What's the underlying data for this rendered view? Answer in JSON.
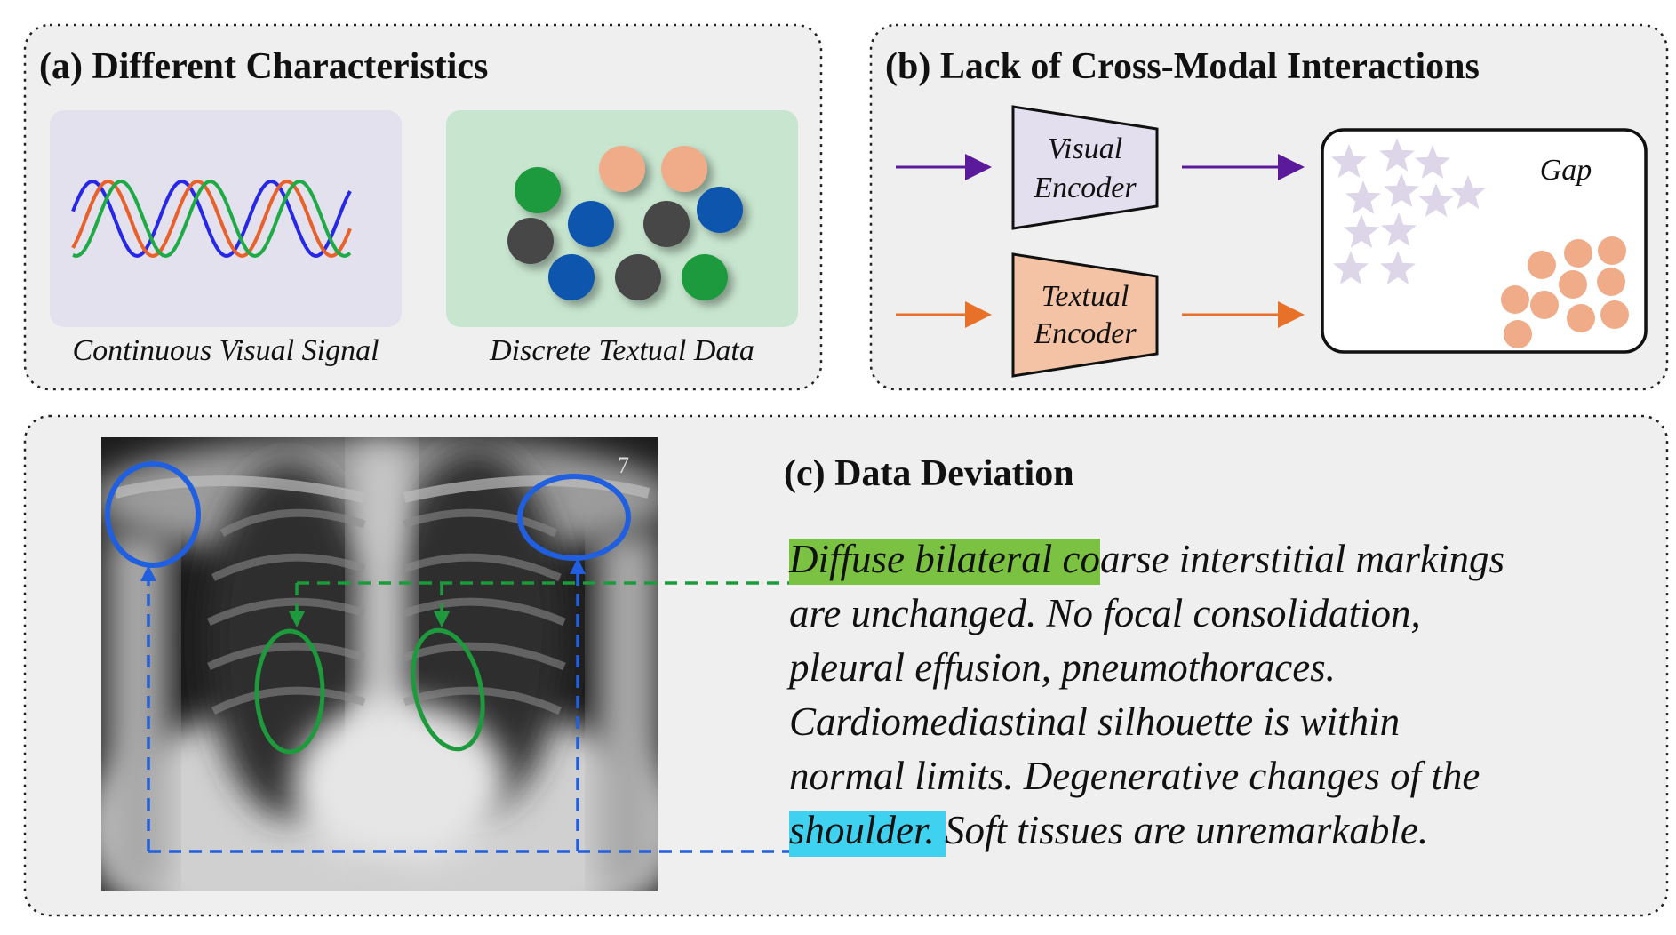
{
  "panel_a": {
    "title": "(a) Different Characteristics",
    "left_caption": "Continuous Visual Signal",
    "right_caption": "Discrete Textual Data"
  },
  "panel_b": {
    "title": "(b) Lack of Cross-Modal Interactions",
    "visual_encoder": {
      "line1": "Visual",
      "line2": "Encoder"
    },
    "textual_encoder": {
      "line1": "Textual",
      "line2": "Encoder"
    },
    "gap_label": "Gap"
  },
  "panel_c": {
    "title": "(c) Data Deviation",
    "report": {
      "line1_highlight": "Diffuse bilateral",
      "line1_rest": " coarse interstitial markings",
      "line2": "are unchanged. No focal consolidation,",
      "line3": "pleural effusion, pneumothoraces.",
      "line4": "Cardiomediastinal silhouette is within",
      "line5": "normal limits. Degenerative changes of the",
      "line6_highlight": "shoulder",
      "line6_rest": ". Soft tissues are unremarkable."
    }
  },
  "colors": {
    "visual": "#5b1a9c",
    "textual": "#e8712a",
    "green": "#1d9a3c",
    "blue": "#1f5fe0",
    "highlight_green": "#7cc242",
    "highlight_cyan": "#3fd2f0",
    "star": "#ddd5e8",
    "dot_orange": "#f0ac88"
  }
}
